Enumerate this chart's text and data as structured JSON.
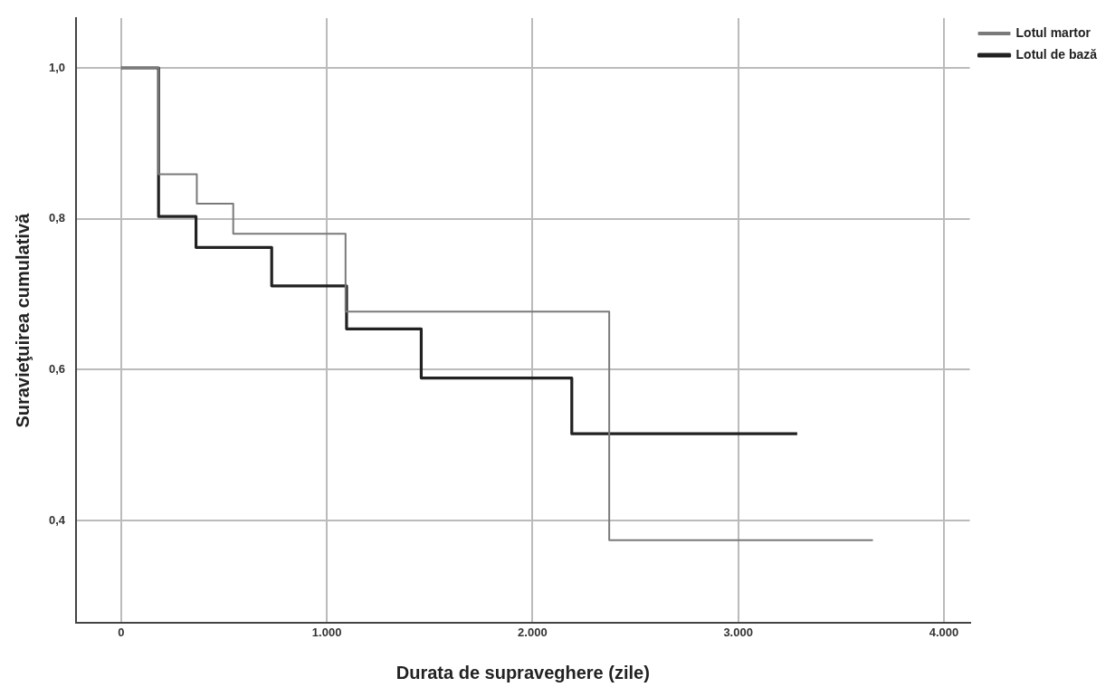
{
  "chart_data": {
    "type": "step",
    "xlabel": "Durata de supraveghere (zile)",
    "ylabel": "Suravieţuirea cumulativă",
    "xlim": [
      -219,
      4126
    ],
    "ylim": [
      0.264,
      1.066
    ],
    "xticks": [
      0,
      {
        "value": 1000,
        "label": "1.000"
      },
      {
        "value": 2000,
        "label": "2.000"
      },
      {
        "value": 3000,
        "label": "3.000"
      },
      {
        "value": 4000,
        "label": "4.000"
      }
    ],
    "yticks": [
      {
        "value": 0.4,
        "label": "0,4"
      },
      {
        "value": 0.6,
        "label": "0,6"
      },
      {
        "value": 0.8,
        "label": "0,8"
      },
      {
        "value": 1,
        "label": "1,0"
      }
    ],
    "grid": true,
    "legend": "top right",
    "series": [
      {
        "name": "Lotul martor",
        "color": "#7a7a7a",
        "x": [
          0,
          182,
          368,
          545,
          1091,
          2373,
          3655
        ],
        "values": [
          1,
          0.859,
          0.82,
          0.78,
          0.677,
          0.374,
          0.374
        ]
      },
      {
        "name": "Lotul de bază",
        "color": "#222222",
        "x": [
          0,
          182,
          364,
          732,
          1096,
          1459,
          2191,
          3287
        ],
        "values": [
          1,
          0.803,
          0.762,
          0.711,
          0.654,
          0.589,
          0.515,
          0.515
        ]
      }
    ]
  }
}
